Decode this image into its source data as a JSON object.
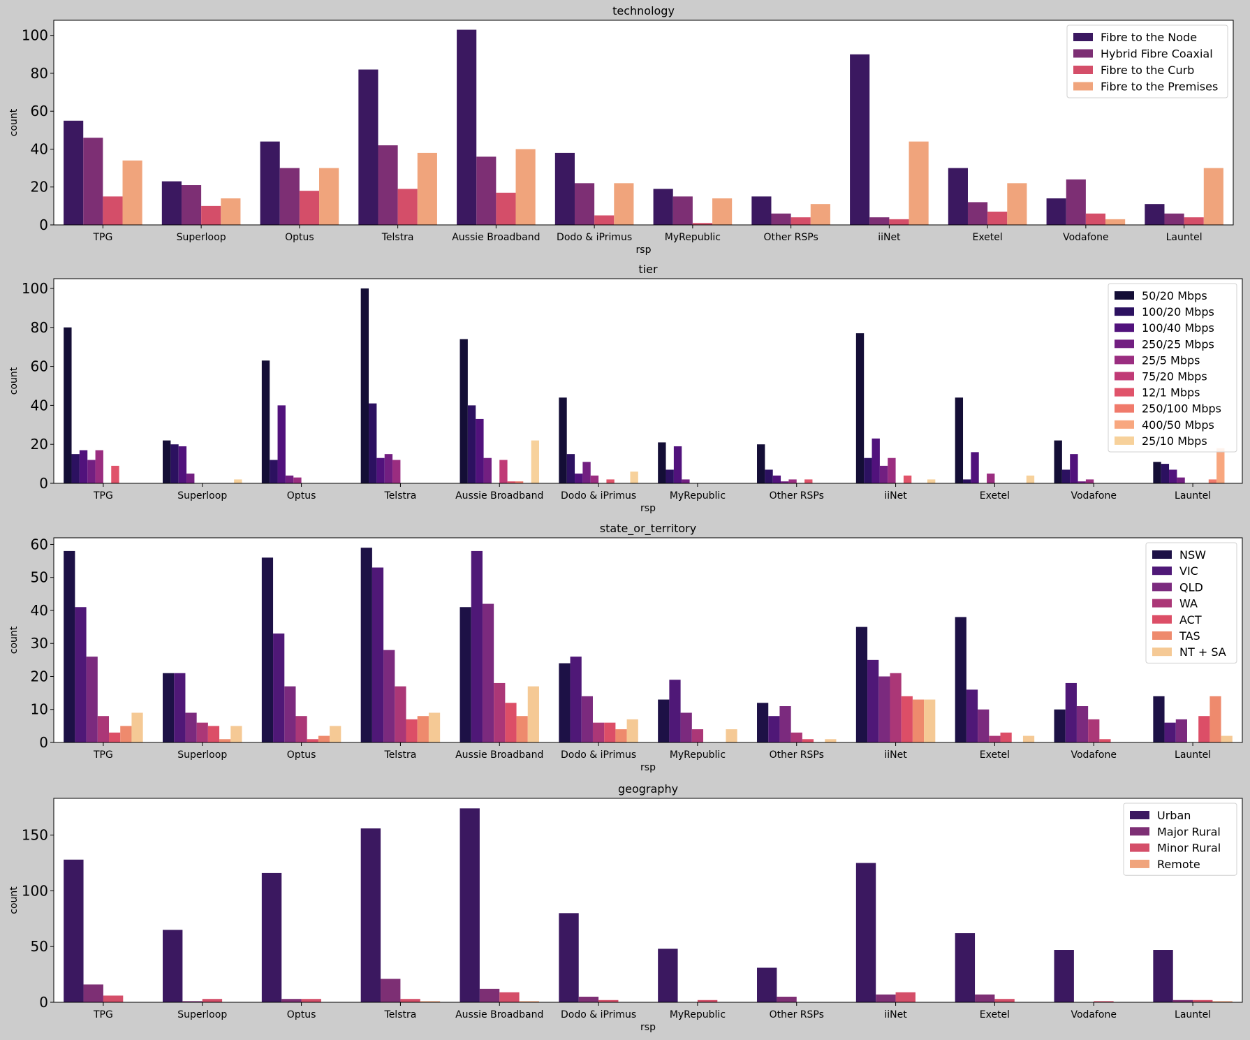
{
  "chart_data": [
    {
      "type": "bar",
      "title": "technology",
      "xlabel": "rsp",
      "ylabel": "count",
      "ylim": [
        0,
        108
      ],
      "yticks": [
        0,
        20,
        40,
        60,
        80,
        100
      ],
      "legend_position": "top-right",
      "categories": [
        "TPG",
        "Superloop",
        "Optus",
        "Telstra",
        "Aussie Broadband",
        "Dodo & iPrimus",
        "MyRepublic",
        "Other RSPs",
        "iiNet",
        "Exetel",
        "Vodafone",
        "Launtel"
      ],
      "series": [
        {
          "name": "Fibre to the Node",
          "color": "#3b1860",
          "values": [
            55,
            23,
            44,
            82,
            103,
            38,
            19,
            15,
            90,
            30,
            14,
            11
          ]
        },
        {
          "name": "Hybrid Fibre Coaxial",
          "color": "#7d2f74",
          "values": [
            46,
            21,
            30,
            42,
            36,
            22,
            15,
            6,
            4,
            12,
            24,
            6
          ]
        },
        {
          "name": "Fibre to the Curb",
          "color": "#d44e69",
          "values": [
            15,
            10,
            18,
            19,
            17,
            5,
            1,
            4,
            3,
            7,
            6,
            4
          ]
        },
        {
          "name": "Fibre to the Premises",
          "color": "#f0a47c",
          "values": [
            34,
            14,
            30,
            38,
            40,
            22,
            14,
            11,
            44,
            22,
            3,
            30
          ]
        }
      ]
    },
    {
      "type": "bar",
      "title": "tier",
      "xlabel": "rsp",
      "ylabel": "count",
      "ylim": [
        0,
        105
      ],
      "yticks": [
        0,
        20,
        40,
        60,
        80,
        100
      ],
      "legend_position": "top-right",
      "categories": [
        "TPG",
        "Superloop",
        "Optus",
        "Telstra",
        "Aussie Broadband",
        "Dodo & iPrimus",
        "MyRepublic",
        "Other RSPs",
        "iiNet",
        "Exetel",
        "Vodafone",
        "Launtel"
      ],
      "series": [
        {
          "name": "50/20 Mbps",
          "color": "#140e36",
          "values": [
            80,
            22,
            63,
            100,
            74,
            44,
            21,
            20,
            77,
            44,
            22,
            11
          ]
        },
        {
          "name": "100/20 Mbps",
          "color": "#2c1160",
          "values": [
            15,
            20,
            12,
            41,
            40,
            15,
            7,
            7,
            13,
            2,
            7,
            10
          ]
        },
        {
          "name": "100/40 Mbps",
          "color": "#51127c",
          "values": [
            17,
            19,
            40,
            13,
            33,
            5,
            19,
            4,
            23,
            16,
            15,
            7
          ]
        },
        {
          "name": "250/25 Mbps",
          "color": "#721f81",
          "values": [
            12,
            5,
            4,
            15,
            13,
            11,
            2,
            1,
            9,
            0,
            1,
            3
          ]
        },
        {
          "name": "25/5 Mbps",
          "color": "#9a2d80",
          "values": [
            17,
            0,
            3,
            12,
            0,
            4,
            0,
            2,
            13,
            5,
            2,
            0
          ]
        },
        {
          "name": "75/20 Mbps",
          "color": "#c03a76",
          "values": [
            0,
            0,
            0,
            0,
            12,
            0,
            0,
            0,
            0,
            0,
            0,
            0
          ]
        },
        {
          "name": "12/1 Mbps",
          "color": "#e0536a",
          "values": [
            9,
            0,
            0,
            0,
            1,
            2,
            0,
            2,
            4,
            0,
            0,
            0
          ]
        },
        {
          "name": "250/100 Mbps",
          "color": "#f07a6b",
          "values": [
            0,
            0,
            0,
            0,
            1,
            0,
            0,
            0,
            0,
            0,
            0,
            2
          ]
        },
        {
          "name": "400/50 Mbps",
          "color": "#f8a77f",
          "values": [
            0,
            0,
            0,
            0,
            0,
            0,
            0,
            0,
            0,
            0,
            0,
            18
          ]
        },
        {
          "name": "25/10 Mbps",
          "color": "#f7d19b",
          "values": [
            0,
            2,
            0,
            0,
            22,
            6,
            0,
            0,
            2,
            4,
            0,
            0
          ]
        }
      ]
    },
    {
      "type": "bar",
      "title": "state_or_territory",
      "xlabel": "rsp",
      "ylabel": "count",
      "ylim": [
        0,
        62
      ],
      "yticks": [
        0,
        10,
        20,
        30,
        40,
        50,
        60
      ],
      "legend_position": "top-right",
      "categories": [
        "TPG",
        "Superloop",
        "Optus",
        "Telstra",
        "Aussie Broadband",
        "Dodo & iPrimus",
        "MyRepublic",
        "Other RSPs",
        "iiNet",
        "Exetel",
        "Vodafone",
        "Launtel"
      ],
      "series": [
        {
          "name": "NSW",
          "color": "#1d1146",
          "values": [
            58,
            21,
            56,
            59,
            41,
            24,
            13,
            12,
            35,
            38,
            10,
            14
          ]
        },
        {
          "name": "VIC",
          "color": "#4f1877",
          "values": [
            41,
            21,
            33,
            53,
            58,
            26,
            19,
            8,
            25,
            16,
            18,
            6
          ]
        },
        {
          "name": "QLD",
          "color": "#7b2a7e",
          "values": [
            26,
            9,
            17,
            28,
            42,
            14,
            9,
            11,
            20,
            10,
            11,
            7
          ]
        },
        {
          "name": "WA",
          "color": "#ab3777",
          "values": [
            8,
            6,
            8,
            17,
            18,
            6,
            4,
            3,
            21,
            2,
            7,
            0
          ]
        },
        {
          "name": "ACT",
          "color": "#dc4e67",
          "values": [
            3,
            5,
            1,
            7,
            12,
            6,
            0,
            1,
            14,
            3,
            1,
            8
          ]
        },
        {
          "name": "TAS",
          "color": "#ee8a6d",
          "values": [
            5,
            1,
            2,
            8,
            8,
            4,
            0,
            0,
            13,
            0,
            0,
            14
          ]
        },
        {
          "name": "NT + SA",
          "color": "#f5c995",
          "values": [
            9,
            5,
            5,
            9,
            17,
            7,
            4,
            1,
            13,
            2,
            0,
            2
          ]
        }
      ]
    },
    {
      "type": "bar",
      "title": "geography",
      "xlabel": "rsp",
      "ylabel": "count",
      "ylim": [
        0,
        183
      ],
      "yticks": [
        0,
        50,
        100,
        150
      ],
      "legend_position": "top-right",
      "categories": [
        "TPG",
        "Superloop",
        "Optus",
        "Telstra",
        "Aussie Broadband",
        "Dodo & iPrimus",
        "MyRepublic",
        "Other RSPs",
        "iiNet",
        "Exetel",
        "Vodafone",
        "Launtel"
      ],
      "series": [
        {
          "name": "Urban",
          "color": "#3b1860",
          "values": [
            128,
            65,
            116,
            156,
            174,
            80,
            48,
            31,
            125,
            62,
            47,
            47
          ]
        },
        {
          "name": "Major Rural",
          "color": "#7d2f74",
          "values": [
            16,
            1,
            3,
            21,
            12,
            5,
            0,
            5,
            7,
            7,
            0,
            2
          ]
        },
        {
          "name": "Minor Rural",
          "color": "#d44e69",
          "values": [
            6,
            3,
            3,
            3,
            9,
            2,
            2,
            0,
            9,
            3,
            1,
            2
          ]
        },
        {
          "name": "Remote",
          "color": "#f0a47c",
          "values": [
            0,
            0,
            0,
            1,
            1,
            0,
            0,
            0,
            0,
            0,
            0,
            1
          ]
        }
      ]
    }
  ]
}
